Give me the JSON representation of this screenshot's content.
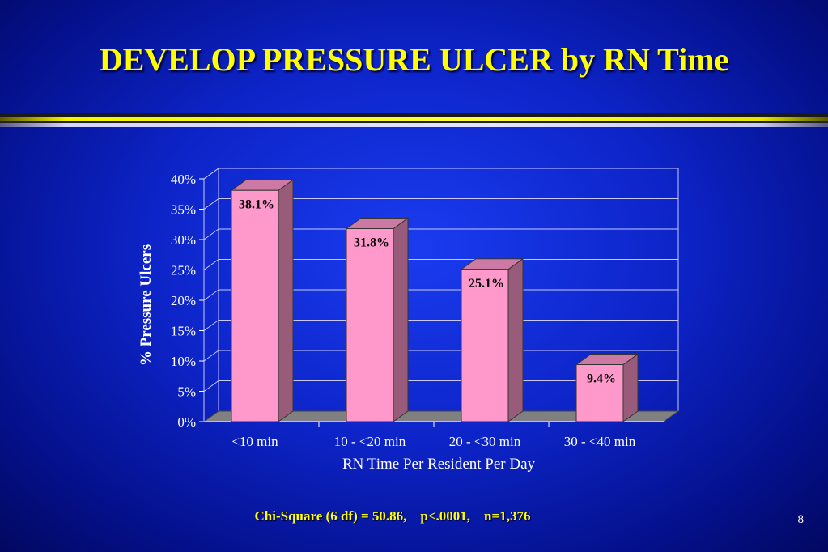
{
  "slide": {
    "title": "DEVELOP PRESSURE ULCER by RN Time",
    "footnote": "Chi-Square (6 df) = 50.86,    p<.0001,    n=1,376",
    "page_number": "8"
  },
  "colors": {
    "background": "#0d24c8",
    "title": "#ffff00",
    "bar_front": "#ff99cc",
    "bar_side": "#995b7a",
    "bar_top": "#cc7aa3",
    "floor": "#808080",
    "text": "#ffffff"
  },
  "chart_data": {
    "type": "bar",
    "title": "",
    "xlabel": "RN Time Per Resident Per Day",
    "ylabel": "% Pressure Ulcers",
    "categories": [
      "<10 min",
      "10 - <20 min",
      "20 - <30 min",
      "30 - <40 min"
    ],
    "values": [
      38.1,
      31.8,
      25.1,
      9.4
    ],
    "data_labels": [
      "38.1%",
      "31.8%",
      "25.1%",
      "9.4%"
    ],
    "ylim": [
      0,
      40
    ],
    "yticks": [
      "0%",
      "5%",
      "10%",
      "15%",
      "20%",
      "25%",
      "30%",
      "35%",
      "40%"
    ],
    "grid": true,
    "legend": "none",
    "style": "3d"
  }
}
